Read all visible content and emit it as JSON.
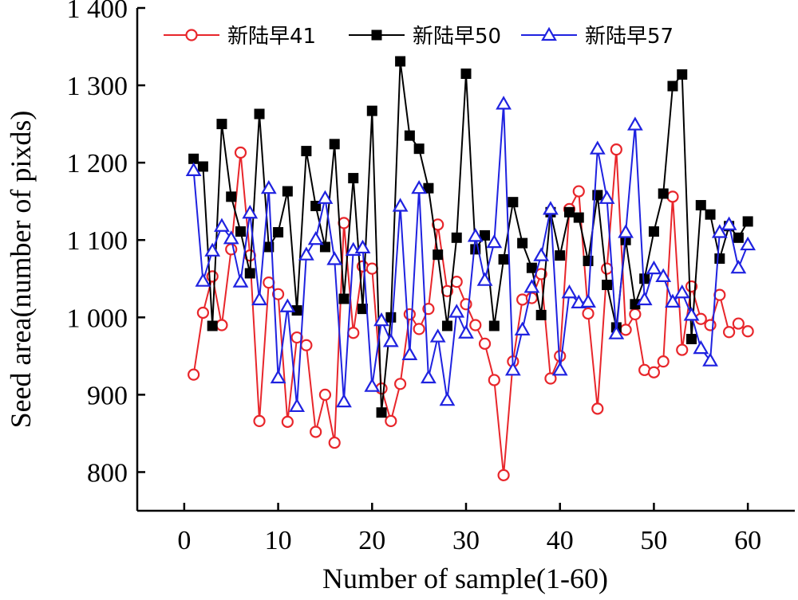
{
  "chart_data": {
    "type": "line",
    "xlabel": "Number of sample(1-60)",
    "ylabel": "Seed area(number of pixds)",
    "xlim": [
      -5,
      65
    ],
    "ylim": [
      750,
      1400
    ],
    "xticks": [
      0,
      10,
      20,
      30,
      40,
      50,
      60
    ],
    "yticks": [
      800,
      900,
      1000,
      1100,
      1200,
      1300,
      1400
    ],
    "xtick_labels": [
      "0",
      "10",
      "20",
      "30",
      "40",
      "50",
      "60"
    ],
    "ytick_labels": [
      "800",
      "900",
      "1 000",
      "1 100",
      "1 200",
      "1 300",
      "1 400"
    ],
    "grid": false,
    "legend_position": "top",
    "x": [
      1,
      2,
      3,
      4,
      5,
      6,
      7,
      8,
      9,
      10,
      11,
      12,
      13,
      14,
      15,
      16,
      17,
      18,
      19,
      20,
      21,
      22,
      23,
      24,
      25,
      26,
      27,
      28,
      29,
      30,
      31,
      32,
      33,
      34,
      35,
      36,
      37,
      38,
      39,
      40,
      41,
      42,
      43,
      44,
      45,
      46,
      47,
      48,
      49,
      50,
      51,
      52,
      53,
      54,
      55,
      56,
      57,
      58,
      59,
      60
    ],
    "series": [
      {
        "name": "新陆早41",
        "color": "#e8262b",
        "marker": "open-circle",
        "values": [
          926,
          1006,
          1053,
          990,
          1088,
          1213,
          1080,
          866,
          1045,
          1030,
          865,
          974,
          964,
          852,
          900,
          838,
          1122,
          980,
          1066,
          1063,
          908,
          866,
          914,
          1004,
          985,
          1011,
          1120,
          1034,
          1046,
          1017,
          990,
          966,
          919,
          796,
          943,
          1023,
          1025,
          1056,
          921,
          950,
          1140,
          1163,
          1005,
          882,
          1063,
          1217,
          984,
          1004,
          932,
          929,
          943,
          1156,
          958,
          1040,
          998,
          990,
          1029,
          981,
          992,
          982
        ]
      },
      {
        "name": "新陆早50",
        "color": "#000000",
        "marker": "filled-square",
        "values": [
          1205,
          1195,
          989,
          1250,
          1156,
          1111,
          1057,
          1263,
          1091,
          1110,
          1163,
          1009,
          1215,
          1144,
          1091,
          1224,
          1024,
          1180,
          1011,
          1267,
          877,
          1000,
          1331,
          1235,
          1218,
          1167,
          1081,
          989,
          1103,
          1315,
          1088,
          1106,
          989,
          1075,
          1149,
          1096,
          1064,
          1003,
          1136,
          1080,
          1136,
          1129,
          1073,
          1158,
          1042,
          987,
          1100,
          1017,
          1050,
          1111,
          1160,
          1299,
          1314,
          972,
          1145,
          1133,
          1076,
          1118,
          1103,
          1124
        ]
      },
      {
        "name": "新陆早57",
        "color": "#1f22e0",
        "marker": "open-triangle",
        "values": [
          1190,
          1047,
          1086,
          1118,
          1102,
          1046,
          1135,
          1023,
          1167,
          922,
          1014,
          885,
          1081,
          1101,
          1154,
          1075,
          891,
          1087,
          1090,
          911,
          996,
          969,
          1144,
          952,
          1167,
          922,
          975,
          893,
          1007,
          980,
          1105,
          1048,
          1097,
          1276,
          932,
          984,
          1039,
          1080,
          1140,
          932,
          1032,
          1019,
          1020,
          1218,
          1154,
          979,
          1110,
          1249,
          1023,
          1063,
          1053,
          1020,
          1032,
          1003,
          960,
          944,
          1110,
          1120,
          1064,
          1094
        ]
      }
    ]
  }
}
